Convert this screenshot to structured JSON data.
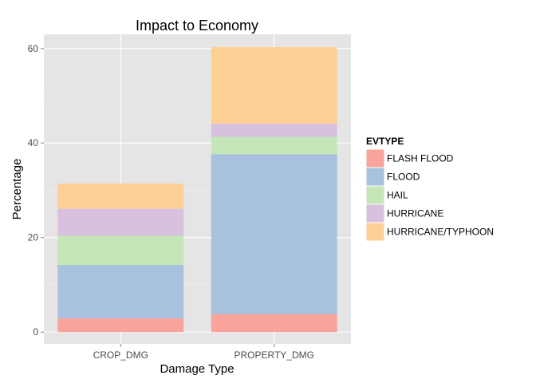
{
  "chart_data": {
    "type": "bar",
    "stacked": true,
    "title": "Impact to Economy",
    "xlabel": "Damage Type",
    "ylabel": "Percentage",
    "categories": [
      "CROP_DMG",
      "PROPERTY_DMG"
    ],
    "ylim": [
      -2.5,
      63
    ],
    "yticks": [
      0,
      20,
      40,
      60
    ],
    "grid": true,
    "legend_title": "EVTYPE",
    "legend_position": "right",
    "series": [
      {
        "name": "FLASH FLOOD",
        "values": [
          2.9,
          3.8
        ],
        "color": "#F8A49A"
      },
      {
        "name": "FLOOD",
        "values": [
          11.3,
          33.8
        ],
        "color": "#A8C1DE"
      },
      {
        "name": "HAIL",
        "values": [
          6.2,
          3.7
        ],
        "color": "#C4E6B8"
      },
      {
        "name": "HURRICANE",
        "values": [
          5.7,
          2.8
        ],
        "color": "#D8C0DF"
      },
      {
        "name": "HURRICANE/TYPHOON",
        "values": [
          5.3,
          16.2
        ],
        "color": "#FED095"
      }
    ],
    "panel_background": "#E5E5E5",
    "gridline_color": "#FFFFFF"
  }
}
